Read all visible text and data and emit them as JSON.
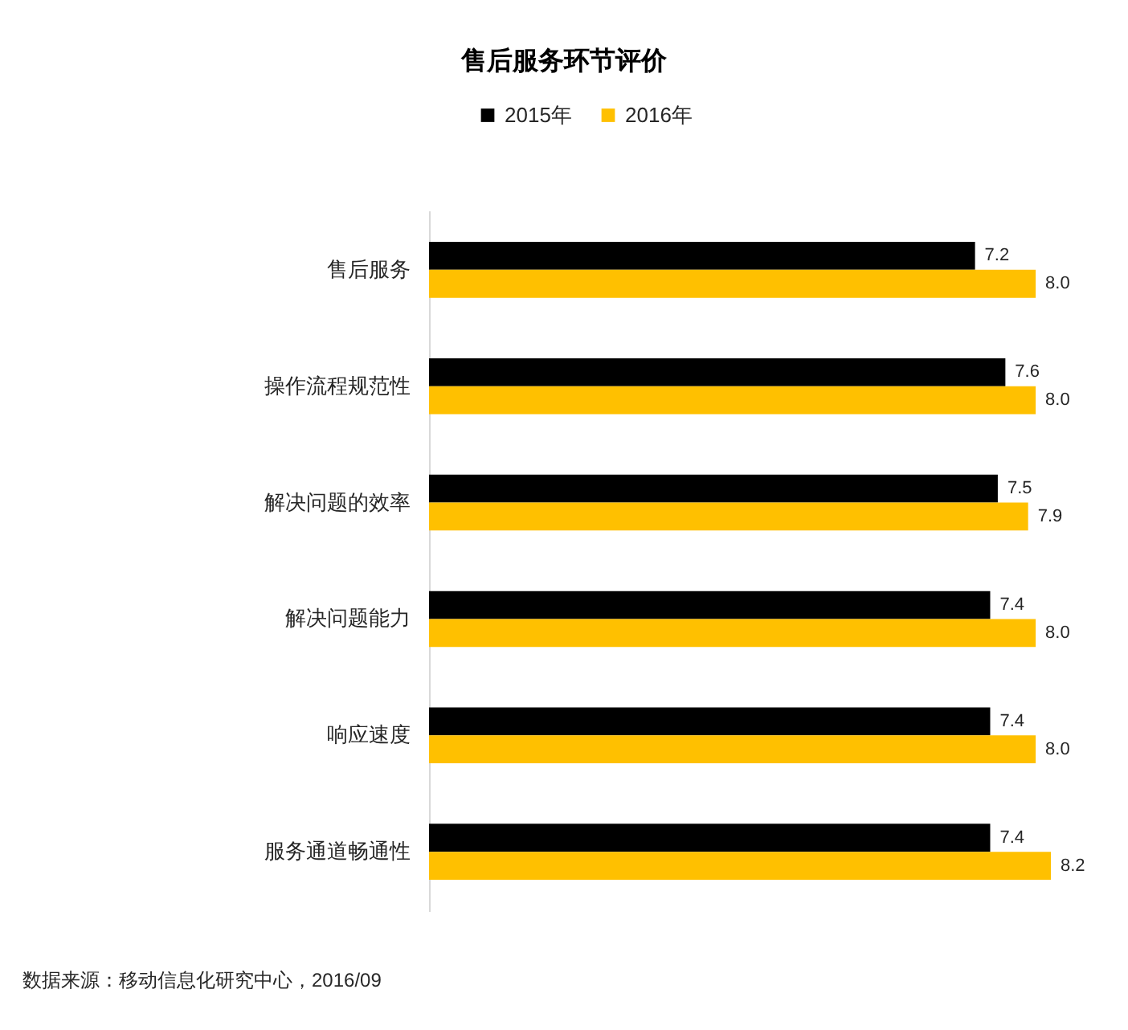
{
  "chart_data": {
    "type": "bar",
    "orientation": "horizontal",
    "title": "售后服务环节评价",
    "categories": [
      "售后服务",
      "操作流程规范性",
      "解决问题的效率",
      "解决问题能力",
      "响应速度",
      "服务通道畅通性"
    ],
    "series": [
      {
        "name": "2015年",
        "color": "#000000",
        "values": [
          7.2,
          7.6,
          7.5,
          7.4,
          7.4,
          7.4
        ],
        "value_labels": [
          "7.2",
          "7.6",
          "7.5",
          "7.4",
          "7.4",
          "7.4"
        ]
      },
      {
        "name": "2016年",
        "color": "#ffc000",
        "values": [
          8.0,
          8.0,
          7.9,
          8.0,
          8.0,
          8.2
        ],
        "value_labels": [
          "8.0",
          "8.0",
          "7.9",
          "8.0",
          "8.0",
          "8.2"
        ]
      }
    ],
    "tick_labels": "y",
    "legend": "top",
    "annotations": [
      "数据来源：移动信息化研究中心，2016/09"
    ]
  }
}
